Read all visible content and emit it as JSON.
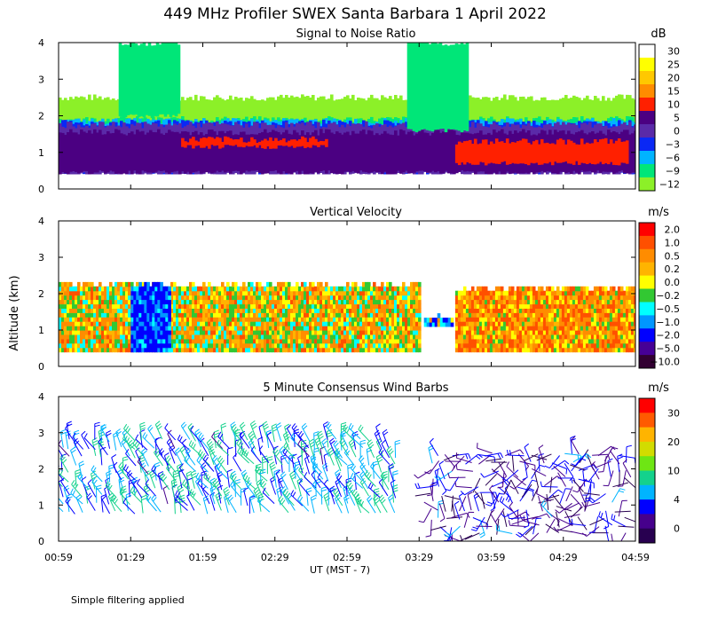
{
  "chart_data": {
    "type": "heatmap",
    "title": "449 MHz Profiler SWEX Santa Barbara  1 April 2022",
    "xlabel": "UT  (MST - 7)",
    "ylabel": "Altitude (km)",
    "note": "Simple filtering applied",
    "x_ticks": [
      "00:59",
      "01:29",
      "01:59",
      "02:29",
      "02:59",
      "03:29",
      "03:59",
      "04:29",
      "04:59"
    ],
    "y_ticks": [
      "0",
      "1",
      "2",
      "3",
      "4"
    ],
    "xlim": [
      "00:59",
      "04:59"
    ],
    "ylim": [
      0,
      4
    ],
    "panels": [
      {
        "title": "Signal to Noise Ratio",
        "unit": "dB",
        "type": "heatmap",
        "colorbar_labels": [
          "30",
          "25",
          "20",
          "15",
          "10",
          "5",
          "0",
          "−3",
          "−6",
          "−9",
          "−12"
        ],
        "colors": [
          "#ffffff",
          "#ffff00",
          "#ffc800",
          "#ff8c00",
          "#ff2000",
          "#4b0082",
          "#5a2aa8",
          "#0a28f5",
          "#00b4ff",
          "#00e678",
          "#8cf028"
        ],
        "bands": [
          {
            "x_start": "00:59",
            "x_end": "04:59",
            "alt_bottom": 1.05,
            "alt_top": 2.5,
            "value_dB": -12
          },
          {
            "x_start": "00:59",
            "x_end": "04:59",
            "alt_bottom": 0.95,
            "alt_top": 1.9,
            "value_dB": -9
          },
          {
            "x_start": "00:59",
            "x_end": "04:59",
            "alt_bottom": 0.8,
            "alt_top": 1.85,
            "value_dB": -6
          },
          {
            "x_start": "00:59",
            "x_end": "04:59",
            "alt_bottom": 0.45,
            "alt_top": 1.8,
            "value_dB": -3
          },
          {
            "x_start": "00:59",
            "x_end": "04:59",
            "alt_bottom": 0.4,
            "alt_top": 1.75,
            "value_dB": 0
          },
          {
            "x_start": "00:59",
            "x_end": "04:59",
            "alt_bottom": 0.45,
            "alt_top": 1.55,
            "value_dB": 5
          },
          {
            "x_start": "01:50",
            "x_end": "02:50",
            "alt_bottom": 1.15,
            "alt_top": 1.35,
            "value_dB": 10
          },
          {
            "x_start": "03:44",
            "x_end": "04:55",
            "alt_bottom": 0.7,
            "alt_top": 1.3,
            "value_dB": 10
          },
          {
            "x_start": "01:24",
            "x_end": "01:49",
            "alt_bottom": 2.0,
            "alt_top": 4.0,
            "value_dB": -9
          },
          {
            "x_start": "03:24",
            "x_end": "03:49",
            "alt_bottom": 1.6,
            "alt_top": 4.0,
            "value_dB": -9
          }
        ]
      },
      {
        "title": "Vertical Velocity",
        "unit": "m/s",
        "type": "heatmap",
        "colorbar_labels": [
          "2.0",
          "1.0",
          "0.5",
          "0.2",
          "0.0",
          "−0.2",
          "−0.5",
          "−1.0",
          "−2.0",
          "−5.0",
          "−10.0"
        ],
        "colors": [
          "#ff0000",
          "#ff5000",
          "#ff8c00",
          "#ffb400",
          "#ffff00",
          "#32c832",
          "#00ffff",
          "#0096ff",
          "#0000ff",
          "#460096",
          "#320032"
        ],
        "bands": [
          {
            "x_start": "00:59",
            "x_end": "03:29",
            "alt_bottom": 0.4,
            "alt_top": 2.2,
            "value_ms": 0.2
          },
          {
            "x_start": "03:31",
            "x_end": "03:43",
            "alt_bottom": 1.1,
            "alt_top": 1.3,
            "value_ms": -1.0
          },
          {
            "x_start": "03:44",
            "x_end": "04:59",
            "alt_bottom": 0.4,
            "alt_top": 2.1,
            "value_ms": 0.5
          },
          {
            "x_start": "01:29",
            "x_end": "01:45",
            "alt_bottom": 0.4,
            "alt_top": 2.2,
            "value_ms": -2.0
          }
        ]
      },
      {
        "title": "5 Minute Consensus Wind Barbs",
        "unit": "m/s",
        "type": "scatter",
        "colorbar_labels": [
          "30",
          "20",
          "10",
          "4",
          "0"
        ],
        "colors": [
          "#ff0000",
          "#ff5a00",
          "#ffb400",
          "#d2dc00",
          "#6ee614",
          "#14d28c",
          "#00b4ff",
          "#0000ff",
          "#46008c",
          "#280050"
        ],
        "barb_layers": [
          {
            "x_start": "00:59",
            "x_end": "03:19",
            "alt_bottom": 0.6,
            "alt_top": 2.9,
            "speed_ms": 10
          },
          {
            "x_start": "03:33",
            "x_end": "04:59",
            "alt_bottom": 0.0,
            "alt_top": 2.5,
            "speed_ms": 4
          }
        ]
      }
    ]
  }
}
